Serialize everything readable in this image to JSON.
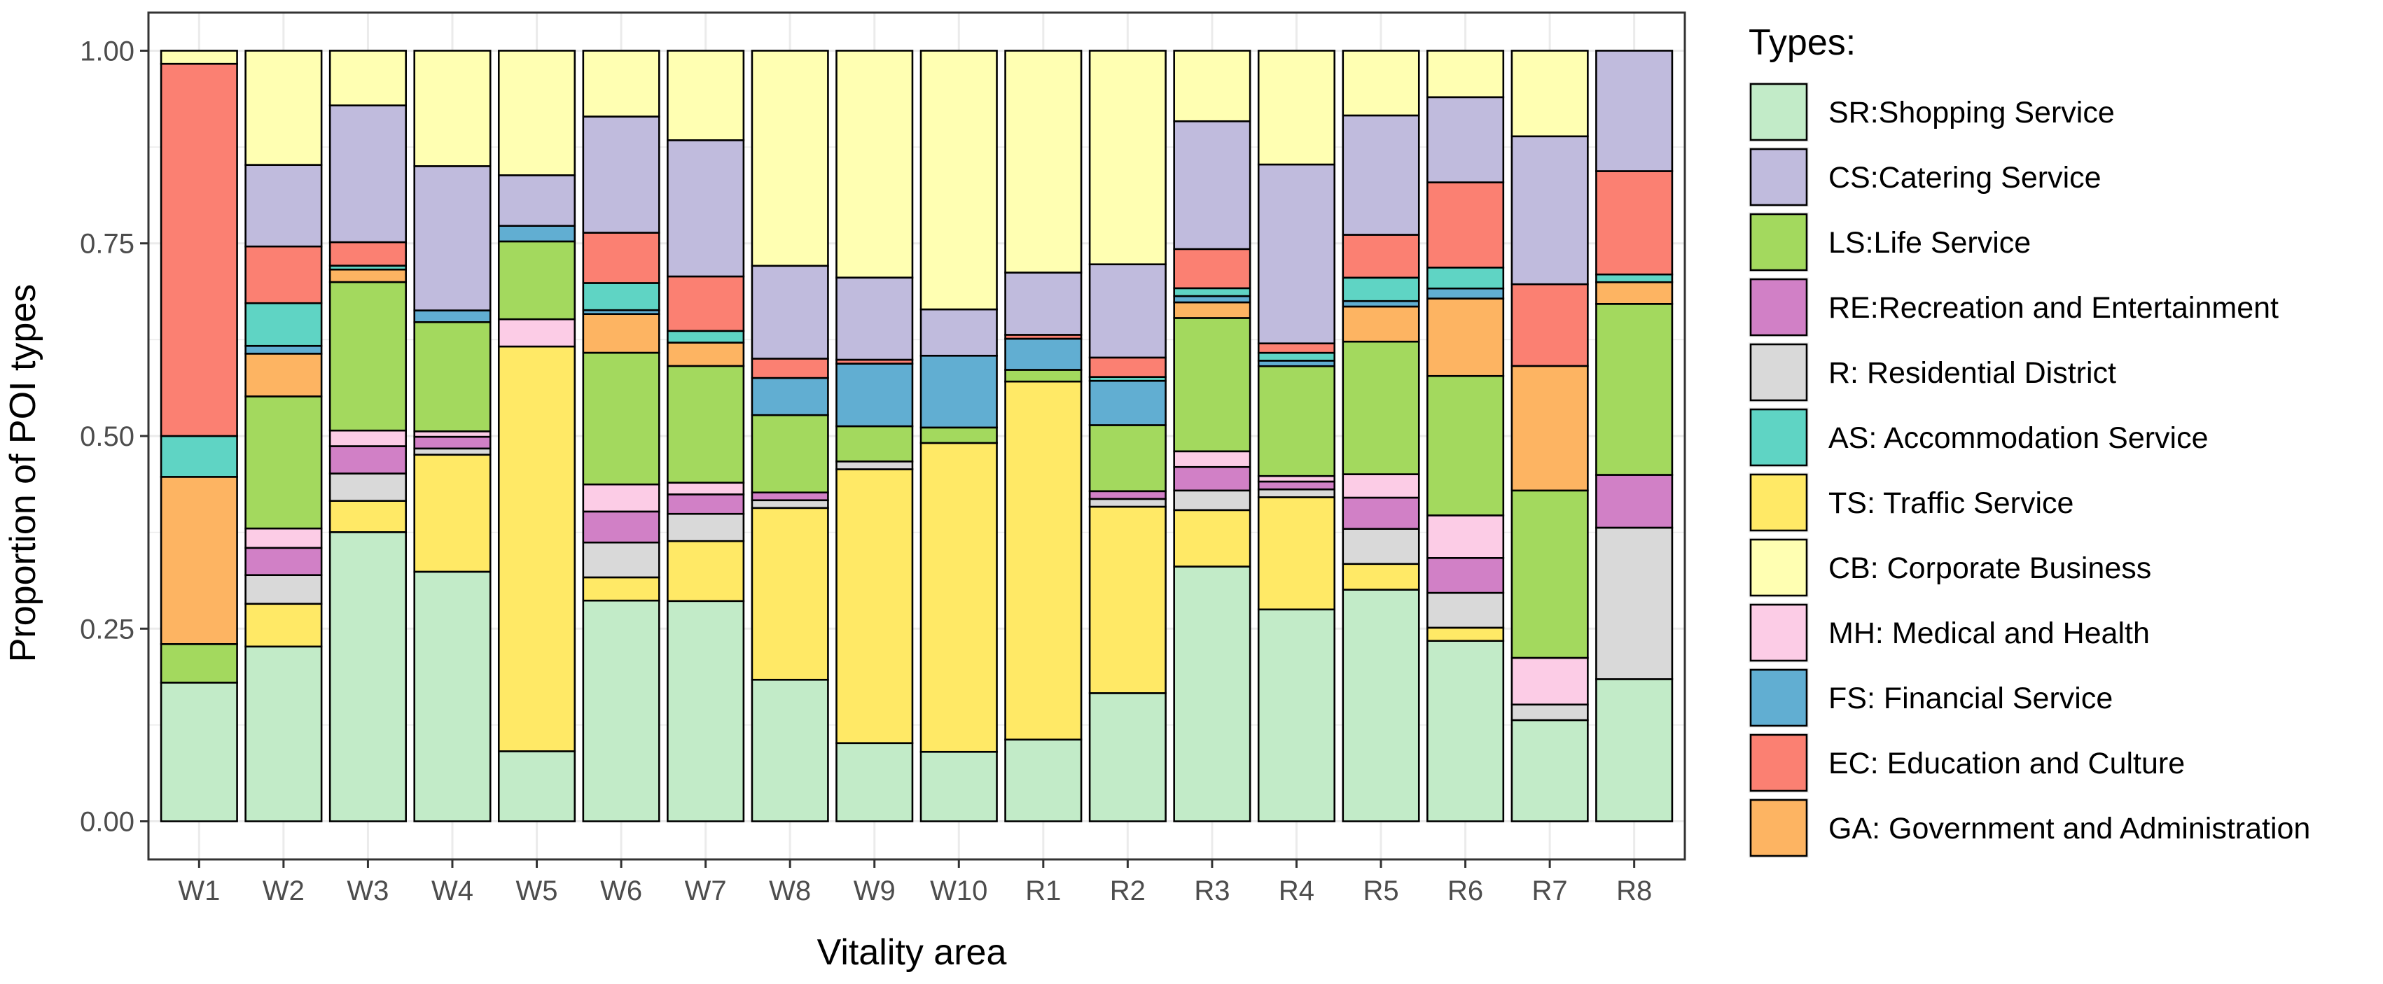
{
  "chart_data": {
    "type": "bar",
    "stacked": true,
    "xlabel": "Vitality area",
    "ylabel": "Proportion of POI types",
    "ylim": [
      0,
      1
    ],
    "yticks": [
      0,
      0.25,
      0.5,
      0.75,
      1
    ],
    "ytick_labels": [
      "0.00",
      "0.25",
      "0.50",
      "0.75",
      "1.00"
    ],
    "grid": true,
    "legend_title": "Types:",
    "legend_position": "right",
    "categories": [
      "W1",
      "W2",
      "W3",
      "W4",
      "W5",
      "W6",
      "W7",
      "W8",
      "W9",
      "W10",
      "R1",
      "R2",
      "R3",
      "R4",
      "R5",
      "R6",
      "R7",
      "R8"
    ],
    "stack_order_bottom_to_top": [
      "SR",
      "TS",
      "R",
      "RE",
      "MH",
      "LS",
      "GA",
      "FS",
      "AS",
      "EC",
      "CS",
      "CB"
    ],
    "series": [
      {
        "key": "SR",
        "name": "SR:Shopping Service",
        "color": "#c2ebc8",
        "values": [
          0.18,
          0.225,
          0.37,
          0.32,
          0.09,
          0.285,
          0.283,
          0.183,
          0.1,
          0.09,
          0.105,
          0.165,
          0.325,
          0.27,
          0.297,
          0.233,
          0.13,
          0.183
        ]
      },
      {
        "key": "CS",
        "name": "CS:Catering Service",
        "color": "#c0bbdd",
        "values": [
          0.0,
          0.105,
          0.175,
          0.185,
          0.065,
          0.15,
          0.175,
          0.12,
          0.105,
          0.06,
          0.08,
          0.12,
          0.163,
          0.228,
          0.153,
          0.11,
          0.19,
          0.155
        ]
      },
      {
        "key": "LS",
        "name": "LS:Life Service",
        "color": "#a3d95e",
        "values": [
          0.05,
          0.17,
          0.19,
          0.14,
          0.1,
          0.17,
          0.15,
          0.1,
          0.045,
          0.02,
          0.015,
          0.085,
          0.17,
          0.14,
          0.17,
          0.18,
          0.215,
          0.22
        ]
      },
      {
        "key": "RE",
        "name": "RE:Recreation and Entertainment",
        "color": "#d180c6",
        "values": [
          0.0,
          0.035,
          0.035,
          0.015,
          0.0,
          0.04,
          0.025,
          0.01,
          0.0,
          0.0,
          0.0,
          0.01,
          0.03,
          0.01,
          0.04,
          0.045,
          0.0,
          0.068
        ]
      },
      {
        "key": "R",
        "name": "R: Residential District",
        "color": "#d9d9d9",
        "values": [
          0.0,
          0.037,
          0.035,
          0.008,
          0.0,
          0.045,
          0.035,
          0.01,
          0.01,
          0.0,
          0.0,
          0.01,
          0.025,
          0.01,
          0.045,
          0.045,
          0.02,
          0.195
        ]
      },
      {
        "key": "AS",
        "name": "AS: Accommodation Service",
        "color": "#5fd4c4",
        "values": [
          0.053,
          0.055,
          0.005,
          0.0,
          0.0,
          0.035,
          0.015,
          0.0,
          0.0,
          0.0,
          0.0,
          0.005,
          0.01,
          0.01,
          0.03,
          0.027,
          0.0,
          0.01
        ]
      },
      {
        "key": "TS",
        "name": "TS: Traffic Service",
        "color": "#ffe966",
        "values": [
          0.0,
          0.055,
          0.04,
          0.15,
          0.52,
          0.03,
          0.077,
          0.222,
          0.35,
          0.4,
          0.46,
          0.24,
          0.072,
          0.143,
          0.033,
          0.017,
          0.0,
          0.0
        ]
      },
      {
        "key": "CB",
        "name": "CB: Corporate Business",
        "color": "#ffffb2",
        "values": [
          0.017,
          0.147,
          0.07,
          0.148,
          0.16,
          0.085,
          0.115,
          0.278,
          0.29,
          0.335,
          0.285,
          0.275,
          0.09,
          0.145,
          0.083,
          0.06,
          0.11,
          0.0
        ]
      },
      {
        "key": "MH",
        "name": "MH: Medical and Health",
        "color": "#fccce6",
        "values": [
          0.0,
          0.025,
          0.02,
          0.007,
          0.035,
          0.035,
          0.015,
          0.0,
          0.0,
          0.0,
          0.0,
          0.0,
          0.02,
          0.007,
          0.03,
          0.055,
          0.06,
          0.0
        ]
      },
      {
        "key": "FS",
        "name": "FS: Financial Service",
        "color": "#61aed2",
        "values": [
          0.0,
          0.01,
          0.0,
          0.015,
          0.02,
          0.005,
          0.0,
          0.048,
          0.08,
          0.093,
          0.04,
          0.057,
          0.008,
          0.007,
          0.007,
          0.013,
          0.0,
          0.0
        ]
      },
      {
        "key": "EC",
        "name": "EC: Education and Culture",
        "color": "#fb8072",
        "values": [
          0.483,
          0.073,
          0.03,
          0.0,
          0.0,
          0.065,
          0.07,
          0.025,
          0.005,
          0.0,
          0.005,
          0.025,
          0.05,
          0.012,
          0.055,
          0.11,
          0.105,
          0.133
        ]
      },
      {
        "key": "GA",
        "name": "GA: Government and Administration",
        "color": "#fdb462",
        "values": [
          0.217,
          0.055,
          0.016,
          0.0,
          0.0,
          0.05,
          0.03,
          0.0,
          0.0,
          0.0,
          0.0,
          0.0,
          0.02,
          0.0,
          0.045,
          0.1,
          0.16,
          0.028
        ]
      }
    ]
  }
}
